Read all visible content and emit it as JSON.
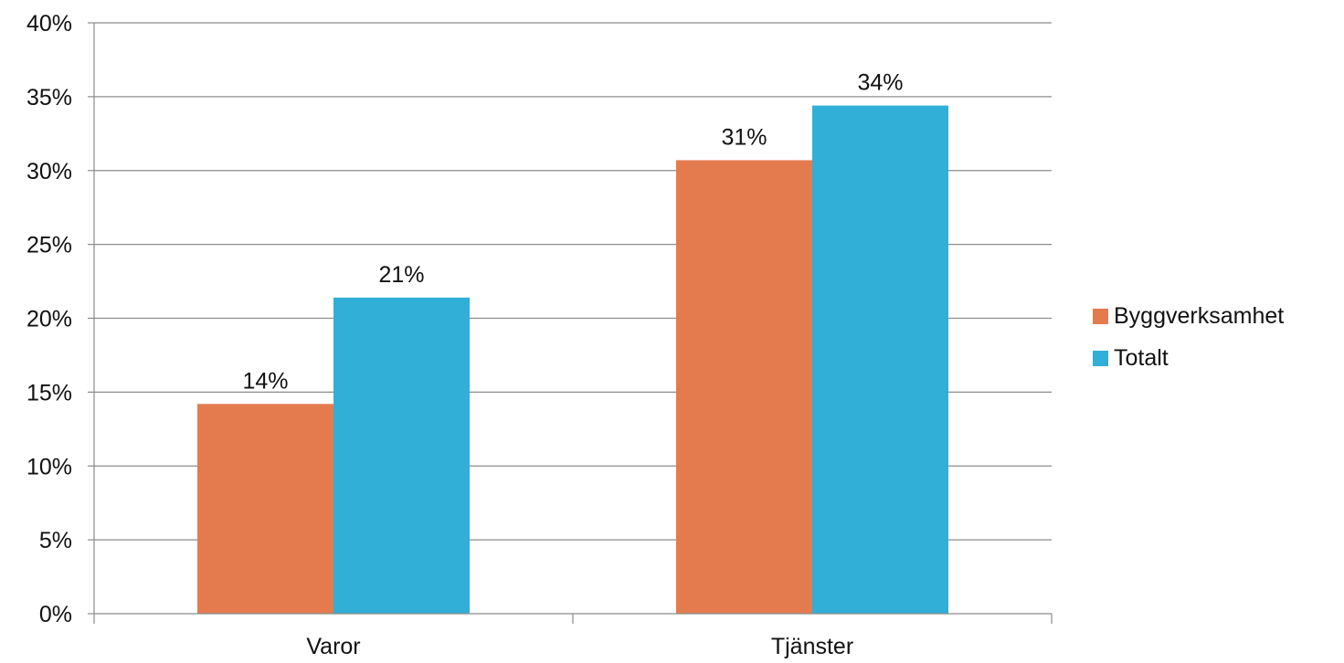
{
  "chart_data": {
    "type": "bar",
    "categories": [
      "Varor",
      "Tjänster"
    ],
    "series": [
      {
        "name": "Byggverksamhet",
        "values": [
          14.2,
          30.7
        ],
        "labels": [
          "14%",
          "31%"
        ],
        "color": "#E47B4F"
      },
      {
        "name": "Totalt",
        "values": [
          21.4,
          34.4
        ],
        "labels": [
          "21%",
          "34%"
        ],
        "color": "#31AFD6"
      }
    ],
    "title": "",
    "xlabel": "",
    "ylabel": "",
    "ylim": [
      0,
      40
    ],
    "yticks": [
      "0%",
      "5%",
      "10%",
      "15%",
      "20%",
      "25%",
      "30%",
      "35%",
      "40%"
    ],
    "grid": true,
    "legend_position": "right"
  }
}
